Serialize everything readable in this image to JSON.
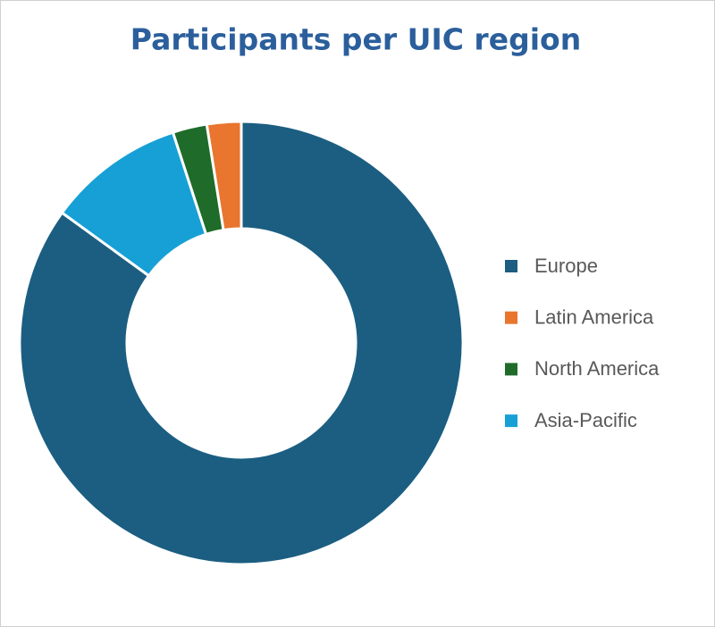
{
  "chart_data": {
    "type": "donut",
    "title": "Participants per UIC region",
    "categories": [
      "Europe",
      "Latin America",
      "North America",
      "Asia-Pacific"
    ],
    "values": [
      85,
      2.5,
      2.5,
      10
    ],
    "colors": [
      "#1b5e81",
      "#e9752f",
      "#1f6b2a",
      "#17a0d6"
    ],
    "legend": "right"
  }
}
